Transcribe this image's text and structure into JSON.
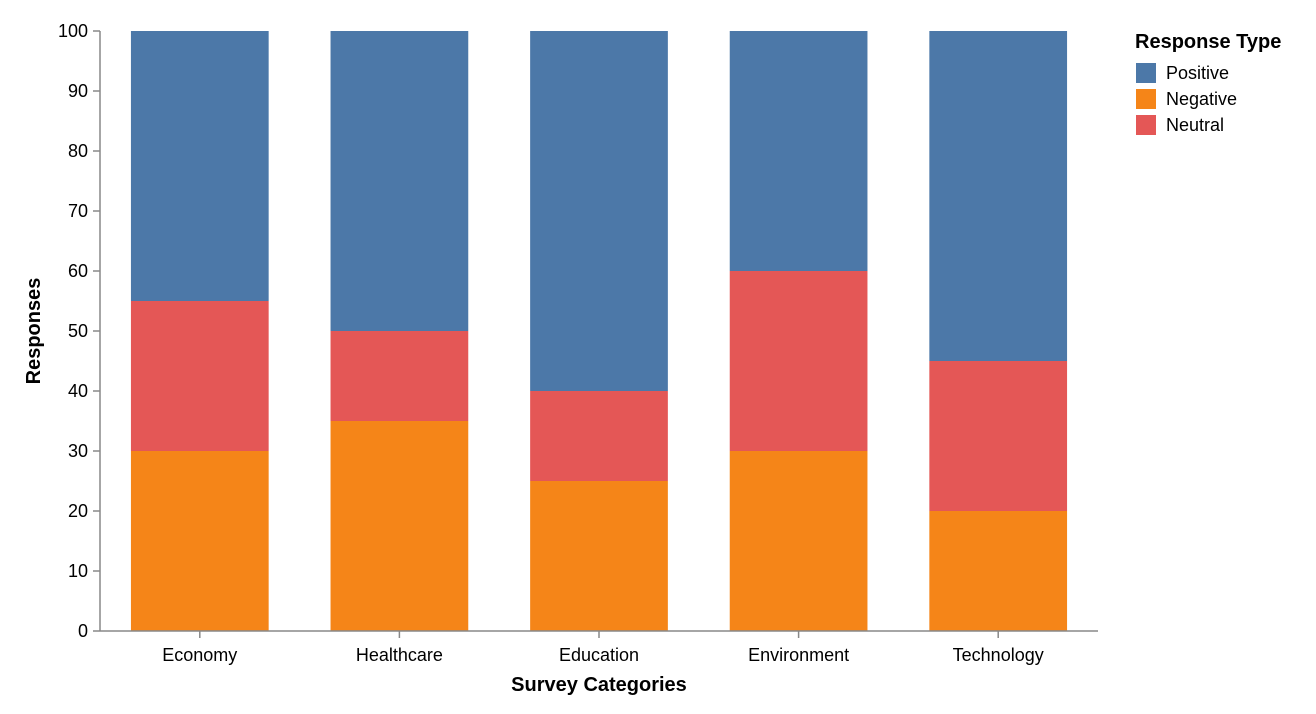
{
  "chart_data": {
    "type": "bar",
    "stacked": true,
    "categories": [
      "Economy",
      "Healthcare",
      "Education",
      "Environment",
      "Technology"
    ],
    "series": [
      {
        "name": "Negative",
        "color": "#f58518",
        "values": [
          30,
          35,
          25,
          30,
          20
        ]
      },
      {
        "name": "Neutral",
        "color": "#e45756",
        "values": [
          25,
          15,
          15,
          30,
          25
        ]
      },
      {
        "name": "Positive",
        "color": "#4c78a8",
        "values": [
          45,
          50,
          60,
          40,
          55
        ]
      }
    ],
    "xlabel": "Survey Categories",
    "ylabel": "Responses",
    "ylim": [
      0,
      100
    ],
    "yticks": [
      0,
      10,
      20,
      30,
      40,
      50,
      60,
      70,
      80,
      90,
      100
    ],
    "grid": false,
    "legend": {
      "title": "Response Type",
      "position": "top-right",
      "items": [
        {
          "label": "Positive",
          "color": "#4c78a8"
        },
        {
          "label": "Negative",
          "color": "#f58518"
        },
        {
          "label": "Neutral",
          "color": "#e45756"
        }
      ]
    }
  }
}
